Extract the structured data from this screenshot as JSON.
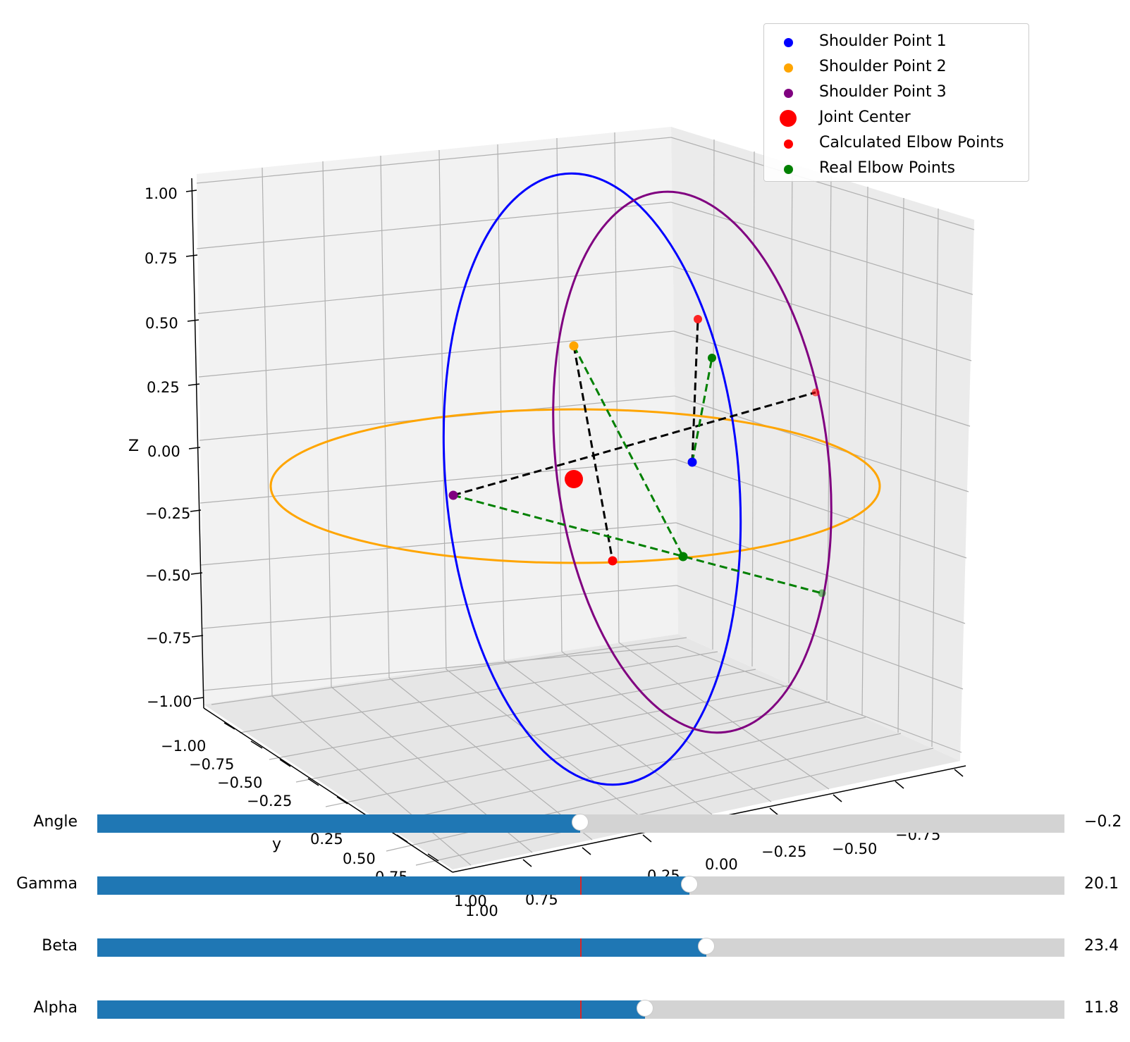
{
  "chart_data": {
    "type": "scatter",
    "title": "",
    "axes": {
      "x": {
        "label": "x",
        "ticks": [
          "−1.00",
          "−0.75",
          "−0.50",
          "−0.25",
          "0.00",
          "0.25",
          "0.50",
          "0.75",
          "1.00"
        ],
        "range": [
          -1,
          1
        ]
      },
      "y": {
        "label": "y",
        "ticks": [
          "−1.00",
          "−0.75",
          "−0.50",
          "−0.25",
          "0.00",
          "0.25",
          "0.50",
          "0.75",
          "1.00"
        ],
        "range": [
          -1,
          1
        ]
      },
      "z": {
        "label": "Z",
        "ticks": [
          "1.00",
          "0.75",
          "0.50",
          "0.25",
          "0.00",
          "−0.25",
          "−0.50",
          "−0.75",
          "−1.00"
        ],
        "range": [
          -1,
          1
        ]
      }
    },
    "grid": true,
    "legend_position": "top-right",
    "series": [
      {
        "name": "Shoulder Point 1",
        "color": "#0000ff"
      },
      {
        "name": "Shoulder Point 2",
        "color": "#ffa500"
      },
      {
        "name": "Shoulder Point 3",
        "color": "#800080"
      },
      {
        "name": "Joint Center",
        "color": "#ff0000"
      },
      {
        "name": "Calculated Elbow Points",
        "color": "#ff0000"
      },
      {
        "name": "Real Elbow Points",
        "color": "#008000"
      }
    ],
    "circles": [
      {
        "color": "#0000ff",
        "plane": "shoulder point 1"
      },
      {
        "color": "#ffa500",
        "plane": "shoulder point 2"
      },
      {
        "color": "#800080",
        "plane": "shoulder point 3"
      }
    ],
    "connectors": [
      {
        "from": "Shoulder Point 1",
        "to": "Calculated Elbow Points",
        "style": "dashed",
        "color": "#000000"
      },
      {
        "from": "Shoulder Point 2",
        "to": "Calculated Elbow Points",
        "style": "dashed",
        "color": "#000000"
      },
      {
        "from": "Shoulder Point 3",
        "to": "Calculated Elbow Points",
        "style": "dashed",
        "color": "#000000"
      },
      {
        "from": "Shoulder Point 1",
        "to": "Real Elbow Points",
        "style": "dashed",
        "color": "#008000"
      },
      {
        "from": "Shoulder Point 2",
        "to": "Real Elbow Points",
        "style": "dashed",
        "color": "#008000"
      },
      {
        "from": "Shoulder Point 3",
        "to": "Real Elbow Points",
        "style": "dashed",
        "color": "#008000"
      }
    ]
  },
  "sliders": [
    {
      "label": "Angle",
      "value": "−0.2",
      "fraction": 0.499
    },
    {
      "label": "Gamma",
      "value": "20.1",
      "fraction": 0.612
    },
    {
      "label": "Beta",
      "value": "23.4",
      "fraction": 0.63
    },
    {
      "label": "Alpha",
      "value": "11.8",
      "fraction": 0.566
    }
  ],
  "slider_initial_fraction": 0.5,
  "colors": {
    "slider_fill": "#1f77b4",
    "slider_track": "#d3d3d3",
    "slider_initial_marker": "#d62728"
  }
}
